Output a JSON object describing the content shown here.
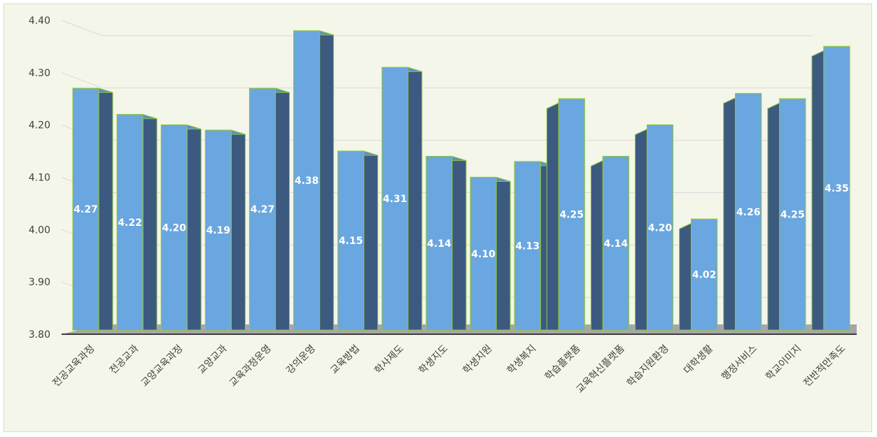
{
  "chart_data": {
    "type": "bar",
    "title": "",
    "xlabel": "",
    "ylabel": "",
    "ylim": [
      3.8,
      4.4
    ],
    "yticks": [
      "3.80",
      "3.90",
      "4.00",
      "4.10",
      "4.20",
      "4.30",
      "4.40"
    ],
    "grid": true,
    "legend": "none",
    "categories": [
      "전공교육과정",
      "전공교과",
      "교양교육과정",
      "교양교과",
      "교육과정운영",
      "강의운영",
      "교육방법",
      "학사제도",
      "학생지도",
      "학생지원",
      "학생복지",
      "학습플랫폼",
      "교육혁신플랫폼",
      "학습지원환경",
      "대학생활",
      "행정서비스",
      "학교이미지",
      "전반적만족도"
    ],
    "values": [
      4.27,
      4.22,
      4.2,
      4.19,
      4.27,
      4.38,
      4.15,
      4.31,
      4.14,
      4.1,
      4.13,
      4.25,
      4.14,
      4.2,
      4.02,
      4.26,
      4.25,
      4.35
    ],
    "value_labels": [
      "4.27",
      "4.22",
      "4.20",
      "4.19",
      "4.27",
      "4.38",
      "4.15",
      "4.31",
      "4.14",
      "4.10",
      "4.13",
      "4.25",
      "4.14",
      "4.20",
      "4.02",
      "4.26",
      "4.25",
      "4.35"
    ],
    "colors": {
      "bar_front": "#6aa6e0",
      "bar_side": "#3c5a80",
      "bar_outline": "#8cc63f",
      "floor": "#a6a6a6",
      "grid": "#e2d4dc",
      "background": "#f4f6e9"
    }
  }
}
